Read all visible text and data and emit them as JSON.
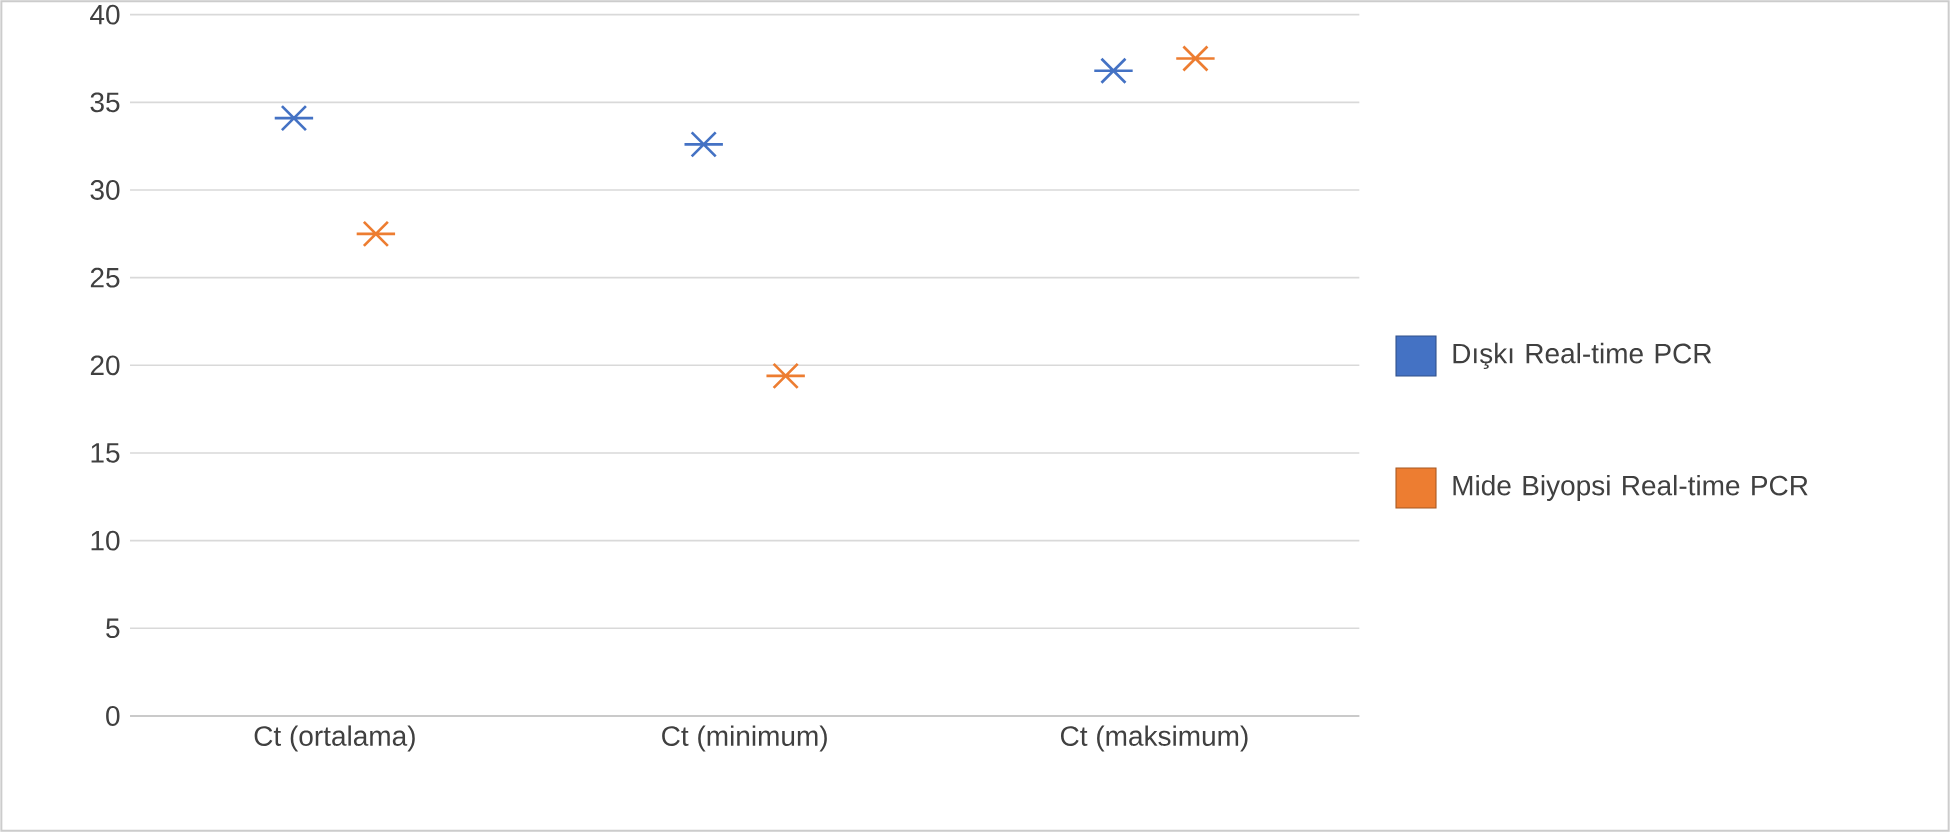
{
  "chart_data": {
    "type": "scatter",
    "categories": [
      "Ct (ortalama)",
      "Ct (minimum)",
      "Ct (maksimum)"
    ],
    "series": [
      {
        "name": "Dışkı Real-time PCR",
        "color": "#4472c4",
        "values": [
          34.1,
          32.6,
          36.8
        ]
      },
      {
        "name": "Mide Biyopsi Real-time PCR",
        "color": "#ed7d31",
        "values": [
          27.5,
          19.4,
          37.5
        ]
      }
    ],
    "ylim": [
      0,
      40
    ],
    "yticks": [
      0,
      5,
      10,
      15,
      20,
      25,
      30,
      35,
      40
    ],
    "grid": "y",
    "legend": "right",
    "marker": "cross"
  }
}
